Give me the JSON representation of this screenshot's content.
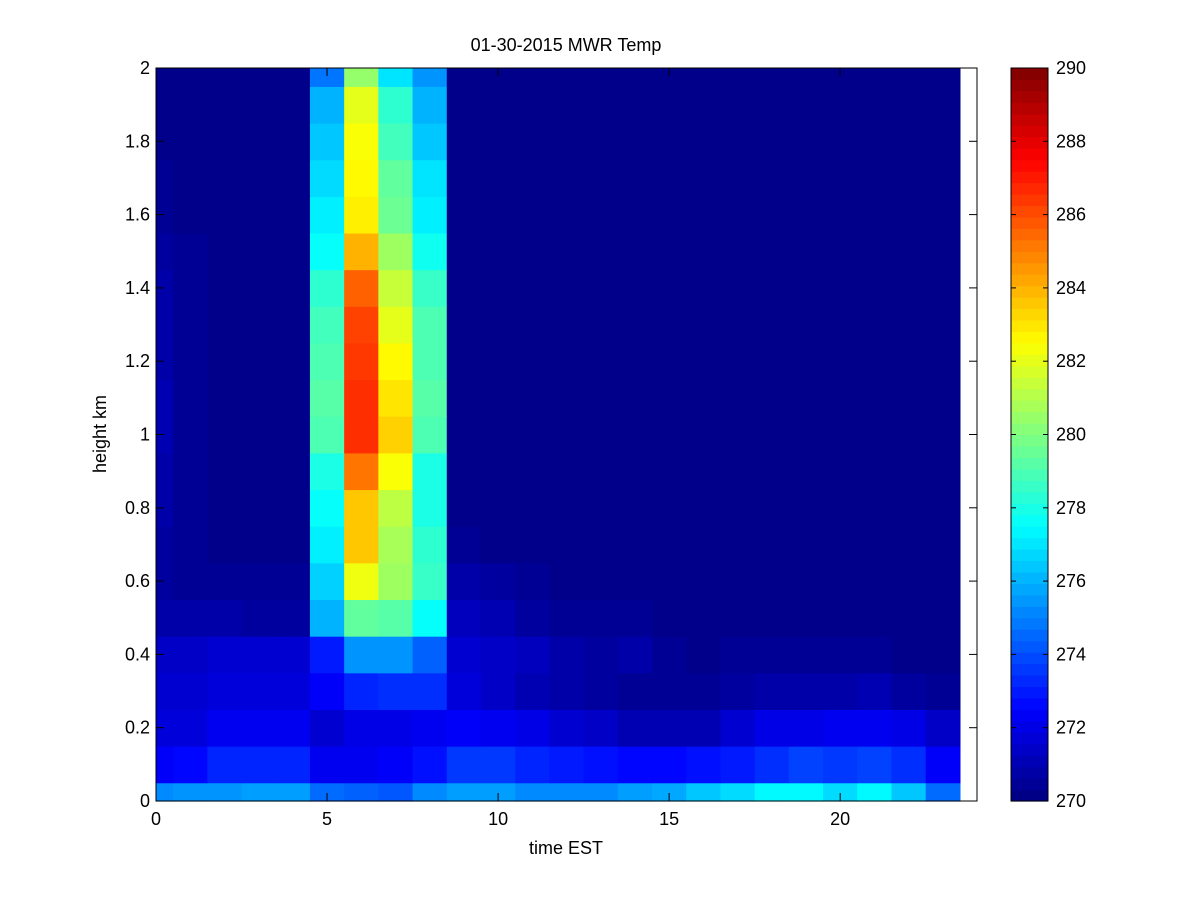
{
  "chart_data": {
    "type": "heatmap",
    "title": "01-30-2015 MWR Temp",
    "xlabel": "time EST",
    "ylabel": "height km",
    "xlim": [
      0,
      24
    ],
    "ylim": [
      0,
      2
    ],
    "x_ticks": [
      0,
      5,
      10,
      15,
      20
    ],
    "x_tick_labels": [
      "0",
      "5",
      "10",
      "15",
      "20"
    ],
    "y_ticks": [
      0,
      0.2,
      0.4,
      0.6,
      0.8,
      1,
      1.2,
      1.4,
      1.6,
      1.8,
      2
    ],
    "y_tick_labels": [
      "0",
      "0.2",
      "0.4",
      "0.6",
      "0.8",
      "1",
      "1.2",
      "1.4",
      "1.6",
      "1.8",
      "2"
    ],
    "colorbar": {
      "colormap": "jet",
      "clim": [
        270,
        290
      ],
      "ticks": [
        270,
        272,
        274,
        276,
        278,
        280,
        282,
        284,
        286,
        288,
        290
      ],
      "tick_labels": [
        "270",
        "272",
        "274",
        "276",
        "278",
        "280",
        "282",
        "284",
        "286",
        "288",
        "290"
      ]
    },
    "grid": false,
    "colors": {
      "no_data": "#ffffff",
      "axis": "#000000"
    },
    "x_edges": [
      0,
      0.5,
      1.5,
      2.5,
      3.5,
      4.5,
      5.5,
      6.5,
      7.5,
      8.5,
      9.5,
      10.5,
      11.5,
      12.5,
      13.5,
      14.5,
      15.5,
      16.5,
      17.5,
      18.5,
      19.5,
      20.5,
      21.5,
      22.5,
      23.5
    ],
    "y_edges": [
      0,
      0.05,
      0.15,
      0.25,
      0.35,
      0.45,
      0.55,
      0.65,
      0.75,
      0.85,
      0.95,
      1.05,
      1.15,
      1.25,
      1.35,
      1.45,
      1.55,
      1.65,
      1.75,
      1.85,
      1.95,
      2.0
    ],
    "values": [
      [
        275.2,
        275.4,
        275.4,
        275.6,
        275.6,
        274.6,
        274.4,
        274.2,
        275.2,
        275.6,
        275.6,
        275.2,
        275.2,
        275.2,
        275.6,
        275.8,
        276.4,
        276.8,
        277.4,
        277.4,
        276.8,
        277.4,
        276.4,
        274.6,
        272.6
      ],
      [
        272.4,
        272.6,
        273.2,
        273.2,
        273.2,
        272.2,
        272.2,
        272.4,
        272.8,
        273.6,
        273.6,
        273.2,
        273.0,
        272.8,
        272.6,
        272.6,
        272.8,
        273.0,
        273.4,
        273.8,
        273.6,
        273.8,
        273.4,
        272.4,
        271.4
      ],
      [
        271.8,
        271.8,
        272.2,
        272.2,
        272.2,
        271.6,
        272.0,
        272.0,
        272.2,
        272.4,
        272.2,
        272.0,
        271.6,
        271.4,
        271.0,
        271.0,
        271.0,
        271.6,
        272.0,
        272.0,
        272.2,
        272.2,
        272.0,
        271.4,
        270.8
      ],
      [
        271.6,
        271.6,
        271.8,
        271.8,
        271.8,
        272.4,
        273.2,
        273.4,
        273.4,
        271.8,
        271.4,
        271.0,
        270.8,
        270.6,
        270.4,
        270.4,
        270.4,
        270.6,
        270.8,
        270.8,
        270.8,
        271.0,
        270.6,
        270.4,
        270.2
      ],
      [
        271.4,
        271.4,
        271.6,
        271.6,
        271.6,
        273.0,
        275.4,
        275.4,
        274.4,
        271.6,
        271.4,
        271.2,
        270.8,
        270.6,
        270.8,
        270.4,
        270.2,
        270.4,
        270.4,
        270.4,
        270.4,
        270.4,
        270.2,
        270.2,
        270.2
      ],
      [
        270.8,
        270.8,
        270.8,
        270.6,
        270.6,
        276.0,
        279.4,
        279.2,
        277.6,
        271.2,
        271.0,
        270.6,
        270.4,
        270.4,
        270.4,
        270.2,
        270.2,
        270.2,
        270.2,
        270.2,
        270.2,
        270.2,
        270.2,
        270.2,
        270.2
      ],
      [
        270.6,
        270.4,
        270.4,
        270.4,
        270.4,
        276.6,
        282.2,
        280.6,
        278.6,
        270.8,
        270.6,
        270.4,
        270.2,
        270.2,
        270.2,
        270.2,
        270.2,
        270.2,
        270.2,
        270.2,
        270.2,
        270.2,
        270.2,
        270.2,
        270.2
      ],
      [
        270.6,
        270.4,
        270.2,
        270.2,
        270.2,
        277.2,
        283.6,
        280.8,
        278.4,
        270.4,
        270.2,
        270.2,
        270.2,
        270.2,
        270.2,
        270.2,
        270.2,
        270.2,
        270.2,
        270.2,
        270.2,
        270.2,
        270.2,
        270.2,
        270.2
      ],
      [
        270.8,
        270.4,
        270.2,
        270.2,
        270.2,
        277.6,
        283.6,
        281.2,
        278.0,
        270.2,
        270.2,
        270.2,
        270.2,
        270.2,
        270.2,
        270.2,
        270.2,
        270.2,
        270.2,
        270.2,
        270.2,
        270.2,
        270.2,
        270.2,
        270.2
      ],
      [
        270.8,
        270.4,
        270.2,
        270.2,
        270.2,
        278.0,
        285.2,
        282.4,
        278.0,
        270.2,
        270.2,
        270.2,
        270.2,
        270.2,
        270.2,
        270.2,
        270.2,
        270.2,
        270.2,
        270.2,
        270.2,
        270.2,
        270.2,
        270.2,
        270.2
      ],
      [
        271.0,
        270.4,
        270.2,
        270.2,
        270.2,
        279.0,
        286.6,
        283.4,
        279.0,
        270.2,
        270.2,
        270.2,
        270.2,
        270.2,
        270.2,
        270.2,
        270.2,
        270.2,
        270.2,
        270.2,
        270.2,
        270.2,
        270.2,
        270.2,
        270.2
      ],
      [
        271.0,
        270.4,
        270.2,
        270.2,
        270.2,
        279.2,
        286.6,
        283.0,
        279.2,
        270.2,
        270.2,
        270.2,
        270.2,
        270.2,
        270.2,
        270.2,
        270.2,
        270.2,
        270.2,
        270.2,
        270.2,
        270.2,
        270.2,
        270.2,
        270.2
      ],
      [
        270.8,
        270.4,
        270.2,
        270.2,
        270.2,
        279.0,
        286.4,
        282.6,
        279.0,
        270.2,
        270.2,
        270.2,
        270.2,
        270.2,
        270.2,
        270.2,
        270.2,
        270.2,
        270.2,
        270.2,
        270.2,
        270.2,
        270.2,
        270.2,
        270.2
      ],
      [
        270.8,
        270.4,
        270.2,
        270.2,
        270.2,
        278.8,
        286.2,
        282.0,
        279.0,
        270.2,
        270.2,
        270.2,
        270.2,
        270.2,
        270.2,
        270.2,
        270.2,
        270.2,
        270.2,
        270.2,
        270.2,
        270.2,
        270.2,
        270.2,
        270.2
      ],
      [
        270.8,
        270.4,
        270.2,
        270.2,
        270.2,
        278.4,
        285.6,
        281.4,
        278.6,
        270.2,
        270.2,
        270.2,
        270.2,
        270.2,
        270.2,
        270.2,
        270.2,
        270.2,
        270.2,
        270.2,
        270.2,
        270.2,
        270.2,
        270.2,
        270.2
      ],
      [
        270.6,
        270.4,
        270.2,
        270.2,
        270.2,
        277.6,
        284.0,
        280.6,
        277.8,
        270.2,
        270.2,
        270.2,
        270.2,
        270.2,
        270.2,
        270.2,
        270.2,
        270.2,
        270.2,
        270.2,
        270.2,
        270.2,
        270.2,
        270.2,
        270.2
      ],
      [
        270.4,
        270.2,
        270.2,
        270.2,
        270.2,
        277.2,
        282.8,
        279.6,
        277.2,
        270.2,
        270.2,
        270.2,
        270.2,
        270.2,
        270.2,
        270.2,
        270.2,
        270.2,
        270.2,
        270.2,
        270.2,
        270.2,
        270.2,
        270.2,
        270.2
      ],
      [
        270.4,
        270.2,
        270.2,
        270.2,
        270.2,
        276.8,
        282.6,
        279.4,
        277.0,
        270.2,
        270.2,
        270.2,
        270.2,
        270.2,
        270.2,
        270.2,
        270.2,
        270.2,
        270.2,
        270.2,
        270.2,
        270.2,
        270.2,
        270.2,
        270.2
      ],
      [
        270.2,
        270.2,
        270.2,
        270.2,
        270.2,
        276.4,
        282.4,
        278.8,
        276.4,
        270.2,
        270.2,
        270.2,
        270.2,
        270.2,
        270.2,
        270.2,
        270.2,
        270.2,
        270.2,
        270.2,
        270.2,
        270.2,
        270.2,
        270.2,
        270.2
      ],
      [
        270.2,
        270.2,
        270.2,
        270.2,
        270.2,
        276.0,
        282.0,
        278.4,
        276.0,
        270.2,
        270.2,
        270.2,
        270.2,
        270.2,
        270.2,
        270.2,
        270.2,
        270.2,
        270.2,
        270.2,
        270.2,
        270.2,
        270.2,
        270.2,
        270.2
      ],
      [
        270.2,
        270.2,
        270.2,
        270.2,
        270.2,
        274.8,
        280.4,
        277.0,
        275.4,
        270.2,
        270.2,
        270.2,
        270.2,
        270.2,
        270.2,
        270.2,
        270.2,
        270.2,
        270.2,
        270.2,
        270.2,
        270.2,
        270.2,
        270.2,
        270.2
      ]
    ]
  }
}
